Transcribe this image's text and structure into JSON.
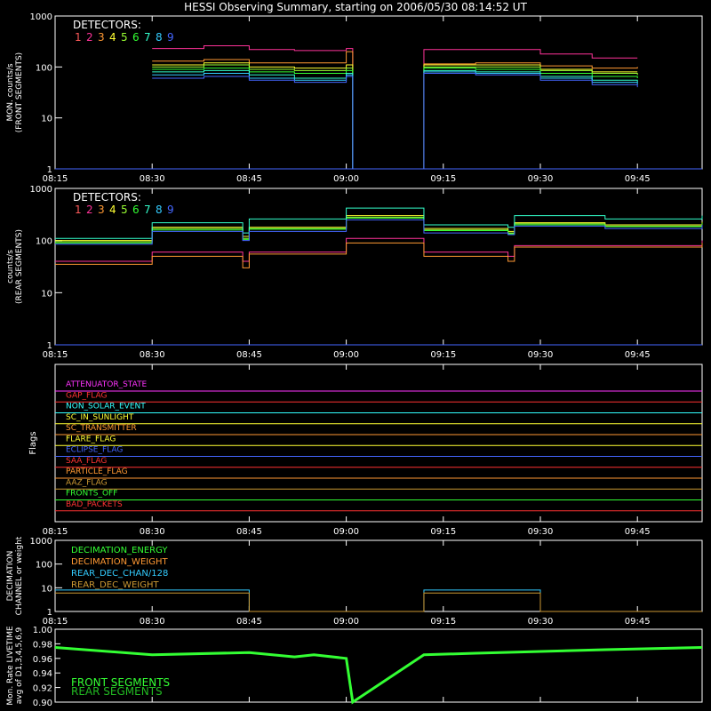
{
  "title": "HESSI Observing Summary, starting on 2006/05/30 08:14:52 UT",
  "time_ticks": [
    "08:15",
    "08:30",
    "08:45",
    "09:00",
    "09:15",
    "09:30",
    "09:45"
  ],
  "detector_colors": [
    "#ff5a5a",
    "#ff3399",
    "#ff9933",
    "#ffff33",
    "#99ff33",
    "#33ff33",
    "#33ffcc",
    "#33ccff",
    "#4466ff"
  ],
  "chart_data": [
    {
      "type": "line",
      "panel": "front",
      "ylabel": "MON. counts/s\n(FRONT SEGMENTS)",
      "yscale": "log",
      "ylim": [
        1,
        1000
      ],
      "y_ticks": [
        "1",
        "10",
        "100",
        "1000"
      ],
      "legend_title": "DETECTORS:",
      "legend_labels": [
        "1",
        "2",
        "3",
        "4",
        "5",
        "6",
        "7",
        "8",
        "9"
      ],
      "series": [
        {
          "name": "1",
          "color": "#ff5a5a",
          "values": [
            1,
            1,
            1,
            1,
            1,
            1,
            1,
            1,
            1,
            1,
            1,
            1,
            1,
            1,
            1,
            1,
            1,
            1,
            1,
            1
          ]
        },
        {
          "name": "2",
          "color": "#ff3399",
          "x": [
            "08:30",
            "08:38",
            "08:45",
            "08:52",
            "09:00",
            "09:01",
            "09:12",
            "09:20",
            "09:30",
            "09:38",
            "09:45"
          ],
          "values": [
            230,
            260,
            220,
            210,
            230,
            1,
            220,
            220,
            180,
            150,
            150
          ]
        },
        {
          "name": "3",
          "color": "#ff9933",
          "x": [
            "08:30",
            "08:38",
            "08:45",
            "08:52",
            "09:00",
            "09:01",
            "09:12",
            "09:20",
            "09:30",
            "09:38",
            "09:45"
          ],
          "values": [
            130,
            140,
            120,
            120,
            200,
            1,
            115,
            120,
            105,
            95,
            100
          ]
        },
        {
          "name": "4",
          "color": "#ffff33",
          "x": [
            "08:30",
            "08:38",
            "08:45",
            "08:52",
            "09:00",
            "09:01",
            "09:12",
            "09:20",
            "09:30",
            "09:38",
            "09:45"
          ],
          "values": [
            110,
            120,
            100,
            95,
            110,
            1,
            110,
            110,
            90,
            80,
            80
          ]
        },
        {
          "name": "5",
          "color": "#99ff33",
          "x": [
            "08:30",
            "08:38",
            "08:45",
            "08:52",
            "09:00",
            "09:01",
            "09:12",
            "09:20",
            "09:30",
            "09:38",
            "09:45"
          ],
          "values": [
            100,
            110,
            90,
            85,
            95,
            1,
            100,
            100,
            85,
            75,
            70
          ]
        },
        {
          "name": "6",
          "color": "#33ff33",
          "x": [
            "08:30",
            "08:38",
            "08:45",
            "08:52",
            "09:00",
            "09:01",
            "09:12",
            "09:20",
            "09:30",
            "09:38",
            "09:45"
          ],
          "values": [
            90,
            95,
            80,
            75,
            85,
            1,
            95,
            90,
            75,
            65,
            60
          ]
        },
        {
          "name": "7",
          "color": "#33ffcc",
          "x": [
            "08:30",
            "08:38",
            "08:45",
            "08:52",
            "09:00",
            "09:01",
            "09:12",
            "09:20",
            "09:30",
            "09:38",
            "09:45"
          ],
          "values": [
            80,
            85,
            70,
            60,
            75,
            1,
            85,
            80,
            65,
            55,
            50
          ]
        },
        {
          "name": "8",
          "color": "#33ccff",
          "x": [
            "08:30",
            "08:38",
            "08:45",
            "08:52",
            "09:00",
            "09:01",
            "09:12",
            "09:20",
            "09:30",
            "09:38",
            "09:45"
          ],
          "values": [
            70,
            75,
            60,
            55,
            70,
            1,
            80,
            75,
            60,
            50,
            45
          ]
        },
        {
          "name": "9",
          "color": "#4466ff",
          "x": [
            "08:30",
            "08:38",
            "08:45",
            "08:52",
            "09:00",
            "09:01",
            "09:12",
            "09:20",
            "09:30",
            "09:38",
            "09:45"
          ],
          "values": [
            60,
            65,
            55,
            50,
            65,
            1,
            75,
            70,
            55,
            45,
            40
          ]
        }
      ]
    },
    {
      "type": "line",
      "panel": "rear",
      "ylabel": "counts/s\n(REAR SEGMENTS)",
      "yscale": "log",
      "ylim": [
        1,
        1000
      ],
      "y_ticks": [
        "1",
        "10",
        "100",
        "1000"
      ],
      "legend_title": "DETECTORS:",
      "legend_labels": [
        "1",
        "2",
        "3",
        "4",
        "5",
        "6",
        "7",
        "8",
        "9"
      ],
      "series": [
        {
          "name": "2",
          "color": "#ff3399",
          "x": [
            "08:15",
            "08:30",
            "08:44",
            "08:45",
            "09:00",
            "09:12",
            "09:25",
            "09:26",
            "09:40",
            "09:55"
          ],
          "values": [
            40,
            60,
            40,
            60,
            110,
            60,
            50,
            80,
            80,
            100
          ]
        },
        {
          "name": "3",
          "color": "#ff9933",
          "x": [
            "08:15",
            "08:30",
            "08:44",
            "08:45",
            "09:00",
            "09:12",
            "09:25",
            "09:26",
            "09:40",
            "09:55"
          ],
          "values": [
            35,
            50,
            30,
            55,
            90,
            50,
            40,
            75,
            75,
            90
          ]
        },
        {
          "name": "4",
          "color": "#ffff33",
          "x": [
            "08:15",
            "08:30",
            "08:44",
            "08:45",
            "09:00",
            "09:12",
            "09:25",
            "09:26",
            "09:40",
            "09:55"
          ],
          "values": [
            100,
            180,
            120,
            180,
            300,
            170,
            150,
            220,
            200,
            230
          ]
        },
        {
          "name": "5",
          "color": "#99ff33",
          "x": [
            "08:15",
            "08:30",
            "08:44",
            "08:45",
            "09:00",
            "09:12",
            "09:25",
            "09:26",
            "09:40",
            "09:55"
          ],
          "values": [
            95,
            170,
            110,
            170,
            280,
            160,
            140,
            210,
            190,
            220
          ]
        },
        {
          "name": "6",
          "color": "#33ff33",
          "x": [
            "08:15",
            "08:30",
            "08:44",
            "08:45",
            "09:00",
            "09:12",
            "09:25",
            "09:26",
            "09:40",
            "09:55"
          ],
          "values": [
            90,
            160,
            105,
            165,
            270,
            155,
            135,
            200,
            185,
            210
          ]
        },
        {
          "name": "7",
          "color": "#33ffcc",
          "x": [
            "08:15",
            "08:30",
            "08:44",
            "08:45",
            "09:00",
            "09:12",
            "09:25",
            "09:26",
            "09:40",
            "09:55"
          ],
          "values": [
            110,
            220,
            140,
            260,
            420,
            200,
            180,
            300,
            260,
            300
          ]
        },
        {
          "name": "9",
          "color": "#4466ff",
          "x": [
            "08:15",
            "08:30",
            "08:44",
            "08:45",
            "09:00",
            "09:12",
            "09:25",
            "09:26",
            "09:40",
            "09:55"
          ],
          "values": [
            85,
            150,
            100,
            150,
            250,
            140,
            130,
            190,
            170,
            200
          ]
        }
      ]
    },
    {
      "type": "line",
      "panel": "flags",
      "ylabel": "Flags",
      "flags": [
        {
          "name": "ATTENUATOR_STATE",
          "color": "#ff33ff"
        },
        {
          "name": "GAP_FLAG",
          "color": "#ff3333"
        },
        {
          "name": "NON_SOLAR_EVENT",
          "color": "#33ffff"
        },
        {
          "name": "SC_IN_SUNLIGHT",
          "color": "#ffff33"
        },
        {
          "name": "SC_TRANSMITTER",
          "color": "#ff9933"
        },
        {
          "name": "FLARE_FLAG",
          "color": "#ffff33"
        },
        {
          "name": "ECLIPSE_FLAG",
          "color": "#4466ff"
        },
        {
          "name": "SAA_FLAG",
          "color": "#ff3333"
        },
        {
          "name": "PARTICLE_FLAG",
          "color": "#ff9933"
        },
        {
          "name": "AAZ_FLAG",
          "color": "#cc9933"
        },
        {
          "name": "FRONTS_OFF",
          "color": "#33ff33"
        },
        {
          "name": "BAD_PACKETS",
          "color": "#ff3333"
        }
      ]
    },
    {
      "type": "line",
      "panel": "decimation",
      "ylabel": "DECIMATION\nCHANNEL or weight",
      "yscale": "log",
      "ylim": [
        1,
        1000
      ],
      "y_ticks": [
        "1",
        "10",
        "100",
        "1000"
      ],
      "legend": [
        "DECIMATION_ENERGY",
        "DECIMATION_WEIGHT",
        "REAR_DEC_CHAN/128",
        "REAR_DEC_WEIGHT"
      ],
      "legend_colors": [
        "#33ff33",
        "#ff9933",
        "#33ccff",
        "#cc9933"
      ],
      "series": [
        {
          "name": "REAR_DEC_CHAN/128",
          "color": "#33ccff",
          "x": [
            "08:15",
            "08:44",
            "08:45",
            "09:11",
            "09:12",
            "09:29",
            "09:30",
            "09:55"
          ],
          "values": [
            8,
            8,
            1,
            1,
            8,
            8,
            1,
            1
          ]
        },
        {
          "name": "REAR_DEC_WEIGHT",
          "color": "#cc9933",
          "x": [
            "08:15",
            "08:44",
            "08:45",
            "09:11",
            "09:12",
            "09:29",
            "09:30",
            "09:55"
          ],
          "values": [
            6,
            6,
            1,
            1,
            6,
            6,
            1,
            1
          ]
        }
      ]
    },
    {
      "type": "line",
      "panel": "livetime",
      "ylabel": "Mon. Rate LIVETIME\navg of D1,3,4,5,6,9",
      "ylim": [
        0.9,
        1.0
      ],
      "y_ticks": [
        "0.90",
        "0.92",
        "0.94",
        "0.96",
        "0.98",
        "1.00"
      ],
      "legend": [
        "FRONT SEGMENTS",
        "REAR SEGMENTS"
      ],
      "legend_colors": [
        "#33ff33",
        "#22bb22"
      ],
      "series": [
        {
          "name": "FRONT SEGMENTS",
          "color": "#33ff33",
          "x": [
            "08:15",
            "08:30",
            "08:45",
            "08:52",
            "08:55",
            "09:00",
            "09:01",
            "09:12",
            "09:20",
            "09:40",
            "09:55"
          ],
          "values": [
            0.975,
            0.965,
            0.968,
            0.962,
            0.965,
            0.96,
            0.9,
            0.965,
            0.967,
            0.972,
            0.975
          ]
        }
      ]
    }
  ]
}
